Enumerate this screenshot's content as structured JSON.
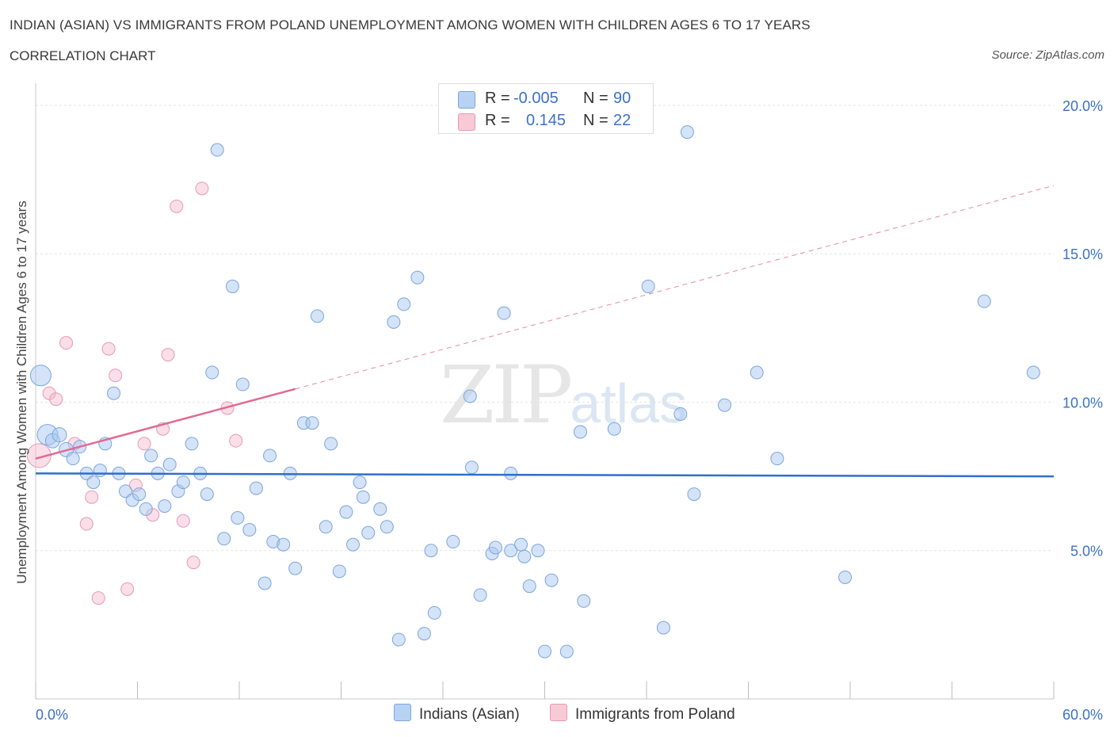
{
  "header": {
    "title": "INDIAN (ASIAN) VS IMMIGRANTS FROM POLAND UNEMPLOYMENT AMONG WOMEN WITH CHILDREN AGES 6 TO 17 YEARS",
    "subtitle": "CORRELATION CHART",
    "source": "Source: ZipAtlas.com"
  },
  "legend": {
    "rows": [
      {
        "r_label": "R =",
        "r_value": "-0.005",
        "n_label": "N =",
        "n_value": "90"
      },
      {
        "r_label": "R =",
        "r_value": "0.145",
        "n_label": "N =",
        "n_value": "22"
      }
    ]
  },
  "watermark": {
    "zip": "ZIP",
    "atlas": "atlas"
  },
  "colors": {
    "blue_fill": "#a9c8f0",
    "blue_stroke": "#7aa6dd",
    "blue_line": "#2f6fcc",
    "pink_fill": "#f5b8cb",
    "pink_stroke": "#e899b2",
    "pink_line": "#e06a92",
    "axis_label": "#3a72c8"
  },
  "chart_data": {
    "type": "scatter",
    "title": "INDIAN (ASIAN) VS IMMIGRANTS FROM POLAND UNEMPLOYMENT AMONG WOMEN WITH CHILDREN AGES 6 TO 17 YEARS",
    "xlabel": "",
    "ylabel": "Unemployment Among Women with Children Ages 6 to 17 years",
    "xlim": [
      0,
      60
    ],
    "ylim": [
      0,
      20.4
    ],
    "x_tick_labels": [
      "0.0%",
      "60.0%"
    ],
    "y_ticks": [
      5,
      10,
      15,
      20
    ],
    "y_tick_labels": [
      "5.0%",
      "10.0%",
      "15.0%",
      "20.0%"
    ],
    "grid": true,
    "legend_position": "top-center",
    "series": [
      {
        "name": "Indians (Asian)",
        "R": -0.005,
        "N": 90,
        "trend": {
          "x": [
            0,
            60
          ],
          "y": [
            7.6,
            7.5
          ]
        },
        "points": [
          {
            "x": 0.3,
            "y": 10.9,
            "s": 13
          },
          {
            "x": 0.7,
            "y": 8.9,
            "s": 13
          },
          {
            "x": 1.0,
            "y": 8.7,
            "s": 9
          },
          {
            "x": 1.4,
            "y": 8.9,
            "s": 9
          },
          {
            "x": 1.8,
            "y": 8.4,
            "s": 9
          },
          {
            "x": 2.2,
            "y": 8.1,
            "s": 8
          },
          {
            "x": 2.6,
            "y": 8.5,
            "s": 8
          },
          {
            "x": 3.0,
            "y": 7.6,
            "s": 8
          },
          {
            "x": 3.4,
            "y": 7.3,
            "s": 8
          },
          {
            "x": 3.8,
            "y": 7.7,
            "s": 8
          },
          {
            "x": 4.1,
            "y": 8.6,
            "s": 8
          },
          {
            "x": 4.6,
            "y": 10.3,
            "s": 8
          },
          {
            "x": 4.9,
            "y": 7.6,
            "s": 8
          },
          {
            "x": 5.3,
            "y": 7.0,
            "s": 8
          },
          {
            "x": 5.7,
            "y": 6.7,
            "s": 8
          },
          {
            "x": 6.1,
            "y": 6.9,
            "s": 8
          },
          {
            "x": 6.5,
            "y": 6.4,
            "s": 8
          },
          {
            "x": 6.8,
            "y": 8.2,
            "s": 8
          },
          {
            "x": 7.2,
            "y": 7.6,
            "s": 8
          },
          {
            "x": 7.6,
            "y": 6.5,
            "s": 8
          },
          {
            "x": 7.9,
            "y": 7.9,
            "s": 8
          },
          {
            "x": 8.4,
            "y": 7.0,
            "s": 8
          },
          {
            "x": 8.7,
            "y": 7.3,
            "s": 8
          },
          {
            "x": 9.2,
            "y": 8.6,
            "s": 8
          },
          {
            "x": 9.7,
            "y": 7.6,
            "s": 8
          },
          {
            "x": 10.1,
            "y": 6.9,
            "s": 8
          },
          {
            "x": 10.4,
            "y": 11.0,
            "s": 8
          },
          {
            "x": 10.7,
            "y": 18.5,
            "s": 8
          },
          {
            "x": 11.1,
            "y": 5.4,
            "s": 8
          },
          {
            "x": 11.6,
            "y": 13.9,
            "s": 8
          },
          {
            "x": 11.9,
            "y": 6.1,
            "s": 8
          },
          {
            "x": 12.2,
            "y": 10.6,
            "s": 8
          },
          {
            "x": 12.6,
            "y": 5.7,
            "s": 8
          },
          {
            "x": 13.0,
            "y": 7.1,
            "s": 8
          },
          {
            "x": 13.5,
            "y": 3.9,
            "s": 8
          },
          {
            "x": 13.8,
            "y": 8.2,
            "s": 8
          },
          {
            "x": 14.0,
            "y": 5.3,
            "s": 8
          },
          {
            "x": 14.6,
            "y": 5.2,
            "s": 8
          },
          {
            "x": 15.0,
            "y": 7.6,
            "s": 8
          },
          {
            "x": 15.3,
            "y": 4.4,
            "s": 8
          },
          {
            "x": 15.8,
            "y": 9.3,
            "s": 8
          },
          {
            "x": 16.3,
            "y": 9.3,
            "s": 8
          },
          {
            "x": 16.6,
            "y": 12.9,
            "s": 8
          },
          {
            "x": 17.1,
            "y": 5.8,
            "s": 8
          },
          {
            "x": 17.4,
            "y": 8.6,
            "s": 8
          },
          {
            "x": 17.9,
            "y": 4.3,
            "s": 8
          },
          {
            "x": 18.3,
            "y": 6.3,
            "s": 8
          },
          {
            "x": 18.7,
            "y": 5.2,
            "s": 8
          },
          {
            "x": 19.1,
            "y": 7.3,
            "s": 8
          },
          {
            "x": 19.3,
            "y": 6.8,
            "s": 8
          },
          {
            "x": 19.6,
            "y": 5.6,
            "s": 8
          },
          {
            "x": 20.3,
            "y": 6.4,
            "s": 8
          },
          {
            "x": 20.7,
            "y": 5.8,
            "s": 8
          },
          {
            "x": 21.1,
            "y": 12.7,
            "s": 8
          },
          {
            "x": 21.4,
            "y": 2.0,
            "s": 8
          },
          {
            "x": 21.7,
            "y": 13.3,
            "s": 8
          },
          {
            "x": 22.5,
            "y": 14.2,
            "s": 8
          },
          {
            "x": 22.9,
            "y": 2.2,
            "s": 8
          },
          {
            "x": 23.3,
            "y": 5.0,
            "s": 8
          },
          {
            "x": 23.5,
            "y": 2.9,
            "s": 8
          },
          {
            "x": 24.6,
            "y": 5.3,
            "s": 8
          },
          {
            "x": 25.6,
            "y": 10.2,
            "s": 8
          },
          {
            "x": 25.7,
            "y": 7.8,
            "s": 8
          },
          {
            "x": 26.2,
            "y": 3.5,
            "s": 8
          },
          {
            "x": 26.9,
            "y": 4.9,
            "s": 8
          },
          {
            "x": 27.1,
            "y": 5.1,
            "s": 8
          },
          {
            "x": 27.6,
            "y": 13.0,
            "s": 8
          },
          {
            "x": 28.0,
            "y": 5.0,
            "s": 8
          },
          {
            "x": 28.0,
            "y": 7.6,
            "s": 8
          },
          {
            "x": 28.6,
            "y": 5.2,
            "s": 8
          },
          {
            "x": 28.8,
            "y": 4.8,
            "s": 8
          },
          {
            "x": 29.1,
            "y": 3.8,
            "s": 8
          },
          {
            "x": 29.6,
            "y": 5.0,
            "s": 8
          },
          {
            "x": 30.0,
            "y": 1.6,
            "s": 8
          },
          {
            "x": 30.4,
            "y": 4.0,
            "s": 8
          },
          {
            "x": 31.3,
            "y": 1.6,
            "s": 8
          },
          {
            "x": 32.1,
            "y": 9.0,
            "s": 8
          },
          {
            "x": 32.3,
            "y": 3.3,
            "s": 8
          },
          {
            "x": 34.1,
            "y": 9.1,
            "s": 8
          },
          {
            "x": 36.1,
            "y": 13.9,
            "s": 8
          },
          {
            "x": 37.0,
            "y": 2.4,
            "s": 8
          },
          {
            "x": 38.0,
            "y": 9.6,
            "s": 8
          },
          {
            "x": 38.4,
            "y": 19.1,
            "s": 8
          },
          {
            "x": 38.8,
            "y": 6.9,
            "s": 8
          },
          {
            "x": 40.6,
            "y": 9.9,
            "s": 8
          },
          {
            "x": 42.5,
            "y": 11.0,
            "s": 8
          },
          {
            "x": 43.7,
            "y": 8.1,
            "s": 8
          },
          {
            "x": 47.7,
            "y": 4.1,
            "s": 8
          },
          {
            "x": 55.9,
            "y": 13.4,
            "s": 8
          },
          {
            "x": 58.8,
            "y": 11.0,
            "s": 8
          }
        ]
      },
      {
        "name": "Immigrants from Poland",
        "R": 0.145,
        "N": 22,
        "trend": {
          "x": [
            0,
            60
          ],
          "y": [
            8.1,
            17.3
          ],
          "solid_until_x": 15.3
        },
        "points": [
          {
            "x": 0.2,
            "y": 8.2,
            "s": 15
          },
          {
            "x": 0.8,
            "y": 10.3,
            "s": 8
          },
          {
            "x": 1.2,
            "y": 10.1,
            "s": 8
          },
          {
            "x": 1.8,
            "y": 12.0,
            "s": 8
          },
          {
            "x": 2.3,
            "y": 8.6,
            "s": 8
          },
          {
            "x": 3.0,
            "y": 5.9,
            "s": 8
          },
          {
            "x": 3.3,
            "y": 6.8,
            "s": 8
          },
          {
            "x": 3.7,
            "y": 3.4,
            "s": 8
          },
          {
            "x": 4.3,
            "y": 11.8,
            "s": 8
          },
          {
            "x": 4.7,
            "y": 10.9,
            "s": 8
          },
          {
            "x": 5.4,
            "y": 3.7,
            "s": 8
          },
          {
            "x": 5.9,
            "y": 7.2,
            "s": 8
          },
          {
            "x": 6.4,
            "y": 8.6,
            "s": 8
          },
          {
            "x": 6.9,
            "y": 6.2,
            "s": 8
          },
          {
            "x": 7.5,
            "y": 9.1,
            "s": 8
          },
          {
            "x": 7.8,
            "y": 11.6,
            "s": 8
          },
          {
            "x": 8.3,
            "y": 16.6,
            "s": 8
          },
          {
            "x": 8.7,
            "y": 6.0,
            "s": 8
          },
          {
            "x": 9.3,
            "y": 4.6,
            "s": 8
          },
          {
            "x": 9.8,
            "y": 17.2,
            "s": 8
          },
          {
            "x": 11.3,
            "y": 9.8,
            "s": 8
          },
          {
            "x": 11.8,
            "y": 8.7,
            "s": 8
          }
        ]
      }
    ]
  },
  "bottom_legend": {
    "items": [
      {
        "label": "Indians (Asian)"
      },
      {
        "label": "Immigrants from Poland"
      }
    ]
  }
}
